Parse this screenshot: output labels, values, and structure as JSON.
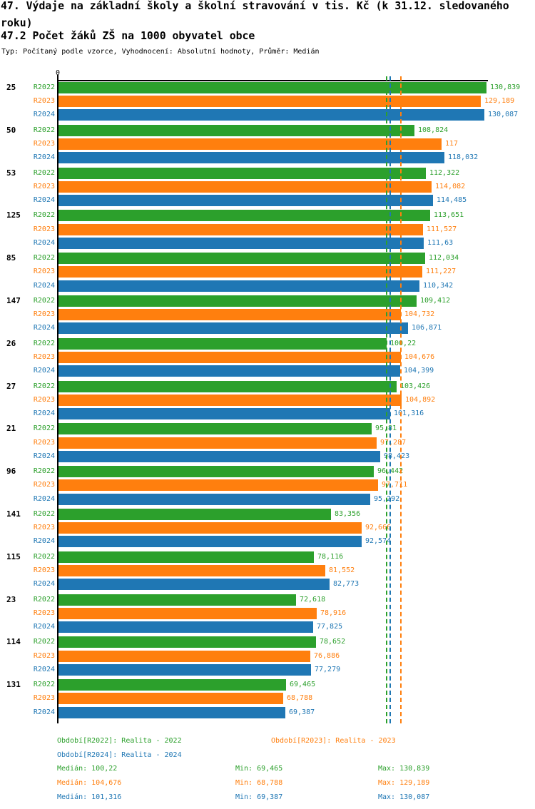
{
  "header": {
    "title_line1": "47. Výdaje na základní školy a školní stravování v tis. Kč (k 31.12. sledovaného",
    "title_line2": "roku)",
    "subtitle": "47.2 Počet žáků ZŠ na 1000 obyvatel obce",
    "meta": "Typ: Počítaný podle vzorce, Vyhodnocení: Absolutní hodnoty, Průměr: Medián"
  },
  "chart_data": {
    "type": "bar",
    "orientation": "horizontal",
    "origin_label": "0",
    "xlim": [
      0,
      131.5
    ],
    "grid": false,
    "legend_position": "bottom",
    "categories": [
      "25",
      "50",
      "53",
      "125",
      "85",
      "147",
      "26",
      "27",
      "21",
      "96",
      "141",
      "115",
      "23",
      "114",
      "131"
    ],
    "series": [
      {
        "name": "R2022",
        "color": "#2ca02c",
        "median": 100.22,
        "min": 69.465,
        "max": 130.839
      },
      {
        "name": "R2023",
        "color": "#ff7f0e",
        "median": 104.676,
        "min": 68.788,
        "max": 129.189
      },
      {
        "name": "R2024",
        "color": "#1f77b4",
        "median": 101.316,
        "min": 69.387,
        "max": 130.087
      }
    ],
    "values": [
      [
        130.839,
        129.189,
        130.087
      ],
      [
        108.824,
        117,
        118.032
      ],
      [
        112.322,
        114.082,
        114.485
      ],
      [
        113.651,
        111.527,
        111.63
      ],
      [
        112.034,
        111.227,
        110.342
      ],
      [
        109.412,
        104.732,
        106.871
      ],
      [
        100.22,
        104.676,
        104.399
      ],
      [
        103.426,
        104.892,
        101.316
      ],
      [
        95.81,
        97.287,
        98.423
      ],
      [
        96.442,
        97.711,
        95.292
      ],
      [
        83.356,
        92.666,
        92.574
      ],
      [
        78.116,
        81.552,
        82.773
      ],
      [
        72.618,
        78.916,
        77.825
      ],
      [
        78.652,
        76.886,
        77.279
      ],
      [
        69.465,
        68.788,
        69.387
      ]
    ]
  },
  "legend": {
    "items": [
      {
        "label": "Období[R2022]: Realita - 2022"
      },
      {
        "label": "Období[R2023]: Realita - 2023"
      },
      {
        "label": "Období[R2024]: Realita - 2024"
      }
    ]
  },
  "stats": {
    "median_label": "Medián",
    "min_label": "Min",
    "max_label": "Max"
  }
}
